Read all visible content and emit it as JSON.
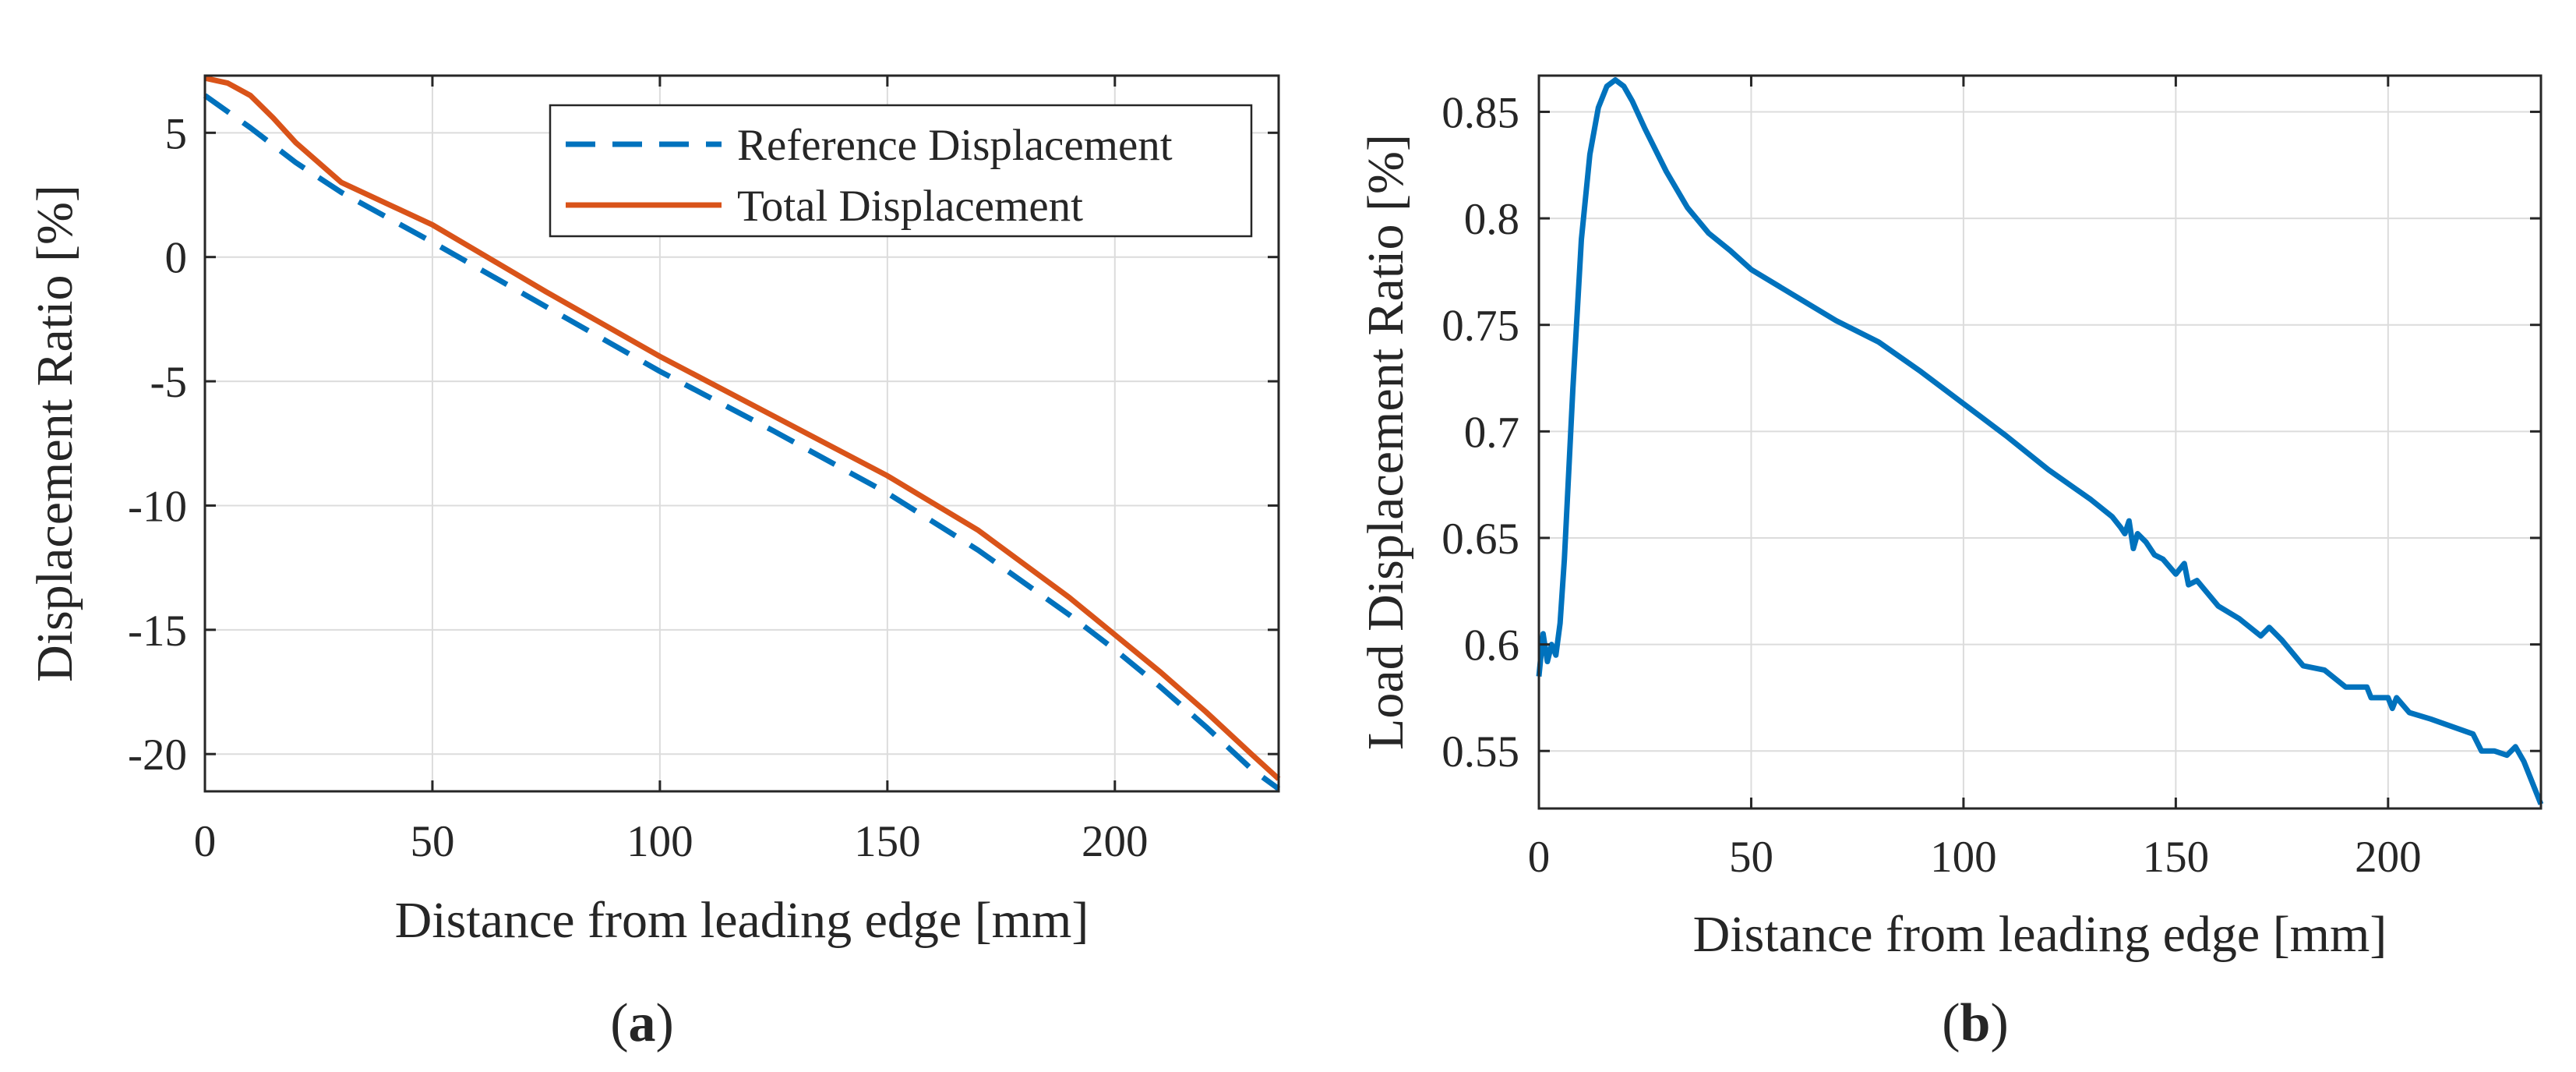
{
  "chart_data": [
    {
      "panel": "(a)",
      "panel_letter": "a",
      "type": "line",
      "xlabel": "Distance from leading edge [mm]",
      "ylabel": "Displacement Ratio [%]",
      "xlim": [
        0,
        236
      ],
      "ylim": [
        -21.5,
        7.3
      ],
      "xticks": [
        0,
        50,
        100,
        150,
        200
      ],
      "yticks": [
        5,
        0,
        -5,
        -10,
        -15,
        -20
      ],
      "grid": true,
      "legend_position": "top-right",
      "series": [
        {
          "name": "Reference Displacement",
          "color": "#0072BD",
          "style": "dashed",
          "x": [
            0,
            10,
            20,
            30,
            50,
            75,
            100,
            125,
            150,
            170,
            190,
            200,
            210,
            220,
            230,
            236
          ],
          "y": [
            6.5,
            5.2,
            3.8,
            2.6,
            0.6,
            -2.0,
            -4.6,
            -7.0,
            -9.5,
            -11.8,
            -14.4,
            -15.8,
            -17.3,
            -18.9,
            -20.6,
            -21.4
          ]
        },
        {
          "name": "Total Displacement",
          "color": "#D95319",
          "style": "solid",
          "x": [
            0,
            5,
            10,
            15,
            20,
            30,
            50,
            75,
            100,
            125,
            150,
            170,
            190,
            200,
            210,
            220,
            230,
            236
          ],
          "y": [
            7.2,
            7.0,
            6.5,
            5.6,
            4.6,
            3.0,
            1.3,
            -1.4,
            -4.0,
            -6.4,
            -8.8,
            -11.0,
            -13.7,
            -15.2,
            -16.7,
            -18.3,
            -20.0,
            -21.0
          ]
        }
      ]
    },
    {
      "panel": "(b)",
      "panel_letter": "b",
      "type": "line",
      "xlabel": "Distance from leading edge [mm]",
      "ylabel": "Load Displacement Ratio [%]",
      "xlim": [
        0,
        236
      ],
      "ylim": [
        0.523,
        0.867
      ],
      "xticks": [
        0,
        50,
        100,
        150,
        200
      ],
      "yticks": [
        0.85,
        0.8,
        0.75,
        0.7,
        0.65,
        0.6,
        0.55
      ],
      "grid": true,
      "series": [
        {
          "color": "#0072BD",
          "style": "solid",
          "x": [
            0,
            1,
            2,
            3,
            4,
            5,
            6,
            8,
            10,
            12,
            14,
            16,
            18,
            20,
            22,
            25,
            30,
            35,
            40,
            45,
            50,
            60,
            70,
            80,
            90,
            100,
            110,
            120,
            130,
            135,
            137,
            138,
            139,
            140,
            141,
            142,
            143,
            145,
            147,
            150,
            152,
            153,
            155,
            160,
            165,
            170,
            172,
            175,
            180,
            185,
            190,
            195,
            196,
            200,
            201,
            202,
            205,
            210,
            220,
            222,
            225,
            228,
            230,
            232,
            234,
            236
          ],
          "y": [
            0.585,
            0.605,
            0.592,
            0.6,
            0.595,
            0.61,
            0.64,
            0.72,
            0.79,
            0.83,
            0.852,
            0.862,
            0.865,
            0.862,
            0.855,
            0.842,
            0.822,
            0.805,
            0.793,
            0.785,
            0.776,
            0.764,
            0.752,
            0.742,
            0.728,
            0.713,
            0.698,
            0.682,
            0.668,
            0.66,
            0.655,
            0.652,
            0.658,
            0.645,
            0.652,
            0.65,
            0.648,
            0.642,
            0.64,
            0.633,
            0.638,
            0.628,
            0.63,
            0.618,
            0.612,
            0.604,
            0.608,
            0.602,
            0.59,
            0.588,
            0.58,
            0.58,
            0.575,
            0.575,
            0.57,
            0.575,
            0.568,
            0.565,
            0.558,
            0.55,
            0.55,
            0.548,
            0.552,
            0.545,
            0.535,
            0.525
          ]
        }
      ]
    }
  ]
}
